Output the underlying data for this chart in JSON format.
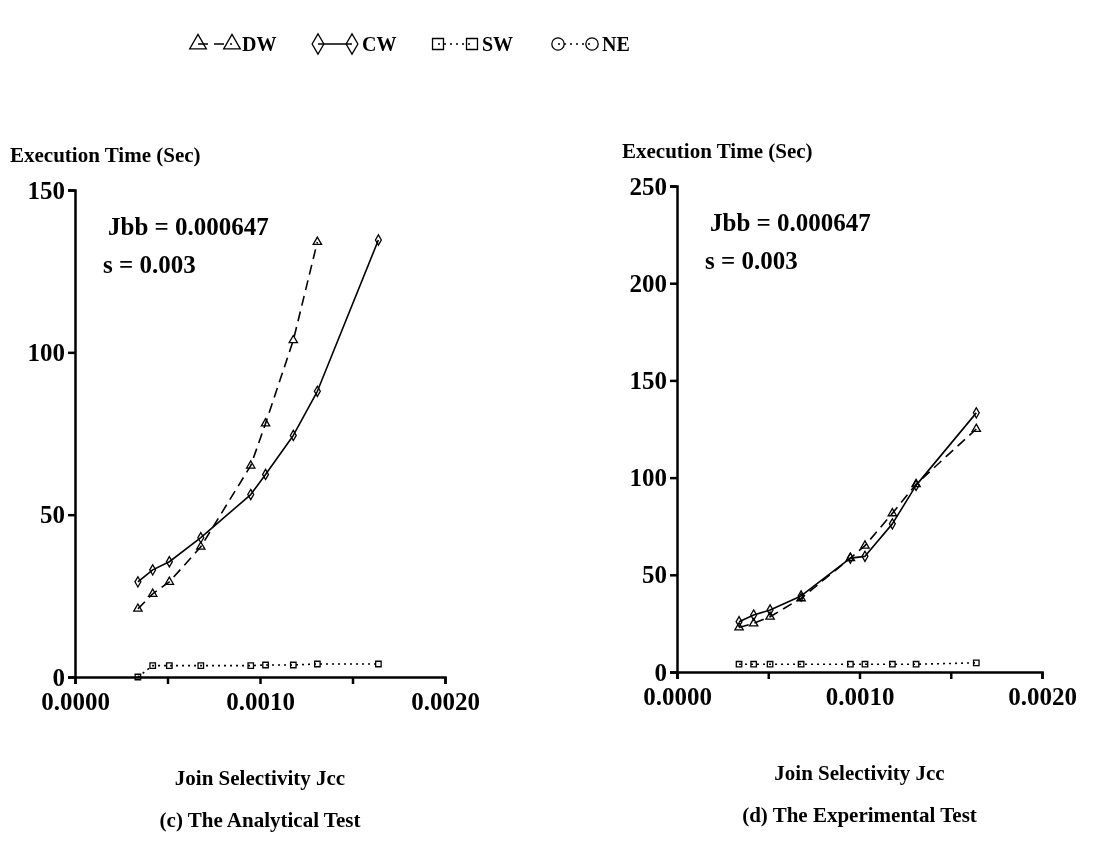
{
  "chart_data": [
    {
      "type": "line",
      "ylabel": "Execution Time (Sec)",
      "xlabel": "Join Selectivity Jcc",
      "annotations": [
        "Jbb = 0.000647",
        "s = 0.003",
        "(c) The Analytical Test"
      ],
      "x": [
        0.00034,
        0.00042,
        0.00051,
        0.00068,
        0.00095,
        0.00103,
        0.00118,
        0.00131,
        0.00164
      ],
      "xlim": [
        0,
        0.002
      ],
      "xticks": [
        {
          "value": 0,
          "label": "0.0000"
        },
        {
          "value": 0.0005,
          "label": null
        },
        {
          "value": 0.001,
          "label": "0.0010"
        },
        {
          "value": 0.0015,
          "label": null
        },
        {
          "value": 0.002,
          "label": "0.0020"
        }
      ],
      "ylim": [
        0,
        150
      ],
      "yticks": [
        0,
        50,
        100,
        150
      ],
      "grid": false,
      "legend": "top",
      "series": [
        {
          "name": "DW",
          "color": "#000000",
          "marker": "triangle",
          "line_style": "dashed",
          "values": [
            21.0,
            25.6,
            29.3,
            40.1,
            65.1,
            78.1,
            103.7,
            134.0,
            null
          ]
        },
        {
          "name": "CW",
          "color": "#000000",
          "marker": "diamond",
          "line_style": "solid",
          "values": [
            29.3,
            33.0,
            35.5,
            42.9,
            56.2,
            62.4,
            74.4,
            88.0,
            134.6
          ]
        },
        {
          "name": "SW",
          "color": "#000000",
          "marker": "square",
          "line_style": "dotted",
          "values": [
            0,
            3.5,
            3.5,
            3.5,
            3.5,
            3.7,
            3.7,
            4.0,
            4.0
          ]
        },
        {
          "name": "NE",
          "color": "#000000",
          "marker": "circle",
          "line_style": "dotted",
          "values": [
            null,
            null,
            null,
            null,
            null,
            null,
            null,
            null,
            null
          ]
        }
      ]
    },
    {
      "type": "line",
      "ylabel": "Execution Time (Sec)",
      "xlabel": "Join Selectivity Jcc",
      "annotations": [
        "Jbb = 0.000647",
        "s = 0.003",
        "(d) The Experimental Test"
      ],
      "x": [
        0.00034,
        0.00042,
        0.00051,
        0.00068,
        0.00095,
        0.00103,
        0.00118,
        0.00131,
        0.00164
      ],
      "xlim": [
        0,
        0.002
      ],
      "xticks": [
        {
          "value": 0,
          "label": "0.0000"
        },
        {
          "value": 0.0005,
          "label": null
        },
        {
          "value": 0.001,
          "label": "0.0010"
        },
        {
          "value": 0.0015,
          "label": null
        },
        {
          "value": 0.002,
          "label": "0.0020"
        }
      ],
      "ylim": [
        0,
        250
      ],
      "yticks": [
        0,
        50,
        100,
        150,
        200,
        250
      ],
      "grid": false,
      "series": [
        {
          "color": "#000000",
          "marker": "triangle",
          "line_style": "dashed",
          "values": [
            22.9,
            25.0,
            28.4,
            37.9,
            58.6,
            65.0,
            81.6,
            96.6,
            125.0
          ]
        },
        {
          "color": "#000000",
          "marker": "diamond",
          "line_style": "solid",
          "values": [
            25.9,
            29.3,
            31.9,
            39.1,
            58.6,
            59.5,
            76.2,
            96.0,
            133.3
          ]
        },
        {
          "color": "#000000",
          "marker": "square",
          "line_style": "dotted",
          "values": [
            4.0,
            4.0,
            4.0,
            4.0,
            4.0,
            4.0,
            4.0,
            4.0,
            4.7
          ]
        }
      ]
    }
  ]
}
